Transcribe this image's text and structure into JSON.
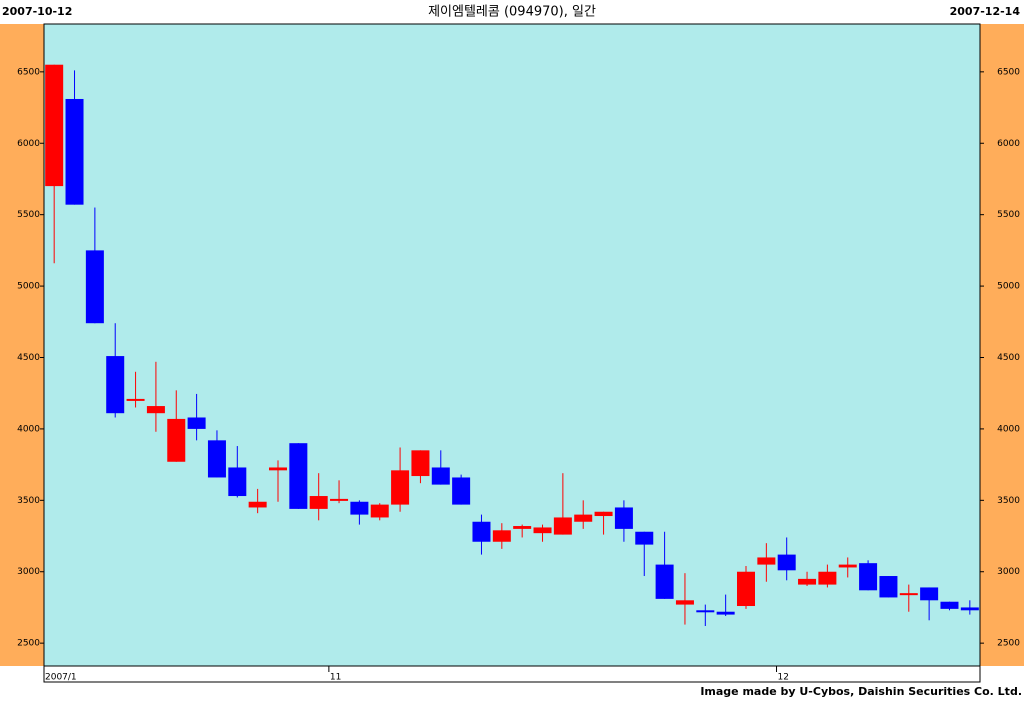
{
  "chart_data": {
    "type": "candlestick",
    "title": "제이엠텔레콤 (094970), 일간",
    "start_label": "2007-10-12",
    "end_label": "2007-12-14",
    "credit": "Image made by U-Cybos, Daishin Securities Co. Ltd.",
    "categories": [
      "2007/1",
      null,
      null,
      null,
      null,
      null,
      null,
      null,
      null,
      null,
      null,
      null,
      null,
      null,
      "11",
      null,
      null,
      null,
      null,
      null,
      null,
      null,
      null,
      null,
      null,
      null,
      null,
      null,
      null,
      null,
      null,
      null,
      null,
      null,
      null,
      null,
      "12",
      null,
      null,
      null,
      null,
      null,
      null,
      null,
      null,
      null
    ],
    "open": [
      5700,
      6310,
      5250,
      4510,
      4200,
      4110,
      3770,
      4080,
      3920,
      3730,
      3450,
      3710,
      3900,
      3440,
      3500,
      3490,
      3380,
      3470,
      3670,
      3730,
      3660,
      3350,
      3210,
      3300,
      3270,
      3260,
      3350,
      3390,
      3450,
      3280,
      3050,
      2770,
      2730,
      2720,
      2760,
      3050,
      3120,
      2910,
      2910,
      3030,
      3060,
      2970,
      2840,
      2890,
      2790,
      2750
    ],
    "high": [
      6550,
      6510,
      5550,
      4740,
      4400,
      4470,
      4270,
      4245,
      3990,
      3880,
      3580,
      3780,
      3900,
      3690,
      3640,
      3500,
      3480,
      3870,
      3850,
      3850,
      3680,
      3400,
      3340,
      3330,
      3330,
      3690,
      3500,
      3420,
      3500,
      3280,
      3280,
      2990,
      2770,
      2840,
      3040,
      3200,
      3240,
      3000,
      3050,
      3100,
      3080,
      2970,
      2910,
      2890,
      2790,
      2800
    ],
    "low": [
      5160,
      5570,
      4740,
      4080,
      4150,
      3980,
      3770,
      3920,
      3660,
      3520,
      3410,
      3490,
      3440,
      3360,
      3480,
      3330,
      3360,
      3420,
      3620,
      3610,
      3470,
      3120,
      3160,
      3240,
      3210,
      3260,
      3300,
      3260,
      3210,
      2970,
      2810,
      2630,
      2620,
      2690,
      2740,
      2930,
      2940,
      2900,
      2890,
      2960,
      2870,
      2820,
      2720,
      2660,
      2730,
      2700
    ],
    "close": [
      6550,
      5570,
      4740,
      4110,
      4210,
      4160,
      4070,
      4000,
      3660,
      3530,
      3490,
      3730,
      3440,
      3530,
      3510,
      3400,
      3470,
      3710,
      3850,
      3610,
      3470,
      3210,
      3290,
      3320,
      3310,
      3380,
      3400,
      3420,
      3300,
      3190,
      2810,
      2800,
      2720,
      2700,
      3000,
      3100,
      3010,
      2950,
      3000,
      3050,
      2870,
      2820,
      2850,
      2800,
      2740,
      2730
    ],
    "up_color": "#ff0000",
    "down_color": "#0000ff",
    "ylim": [
      2340,
      6835
    ],
    "yticks": [
      2500,
      3000,
      3500,
      4000,
      4500,
      5000,
      5500,
      6000,
      6500
    ]
  }
}
